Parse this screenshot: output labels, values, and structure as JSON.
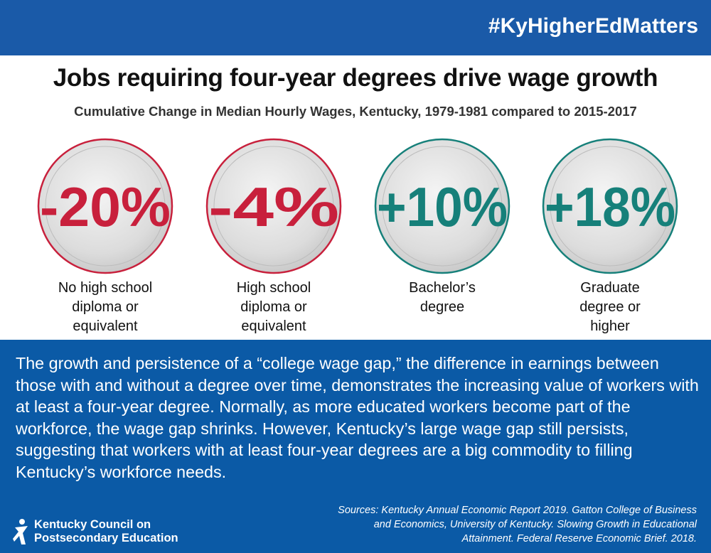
{
  "header": {
    "hashtag": "#KyHigherEdMatters"
  },
  "title": "Jobs requiring four-year degrees drive wage growth",
  "subtitle": "Cumulative Change in Median Hourly Wages, Kentucky, 1979-1981 compared to 2015-2017",
  "items": [
    {
      "stat": "-20%",
      "color": "#c8203c",
      "label": [
        "No high school",
        "diploma or",
        "equivalent"
      ]
    },
    {
      "stat": "-4%",
      "color": "#c8203c",
      "label": [
        "High school",
        "diploma or",
        "equivalent"
      ]
    },
    {
      "stat": "+10%",
      "color": "#16807a",
      "label": [
        "Bachelor’s",
        "degree"
      ]
    },
    {
      "stat": "+18%",
      "color": "#16807a",
      "label": [
        "Graduate",
        "degree or",
        "higher"
      ]
    }
  ],
  "paragraph": "The growth and persistence of a “college wage gap,” the difference in earnings between those with and without a degree over time, demonstrates the increasing value of workers with at least a four-year degree. Normally, as more educated workers become part of the workforce, the wage gap shrinks. However, Kentucky’s large wage gap still persists, suggesting that workers with at least four-year degrees are a big commodity to filling Kentucky’s workforce needs.",
  "sources": [
    "Sources: Kentucky Annual Economic Report 2019. Gatton College of Business",
    "and Economics, University of Kentucky. Slowing Growth in Educational",
    "Attainment. Federal Reserve Economic Brief. 2018."
  ],
  "logo": [
    "Kentucky Council on",
    "Postsecondary Education"
  ]
}
